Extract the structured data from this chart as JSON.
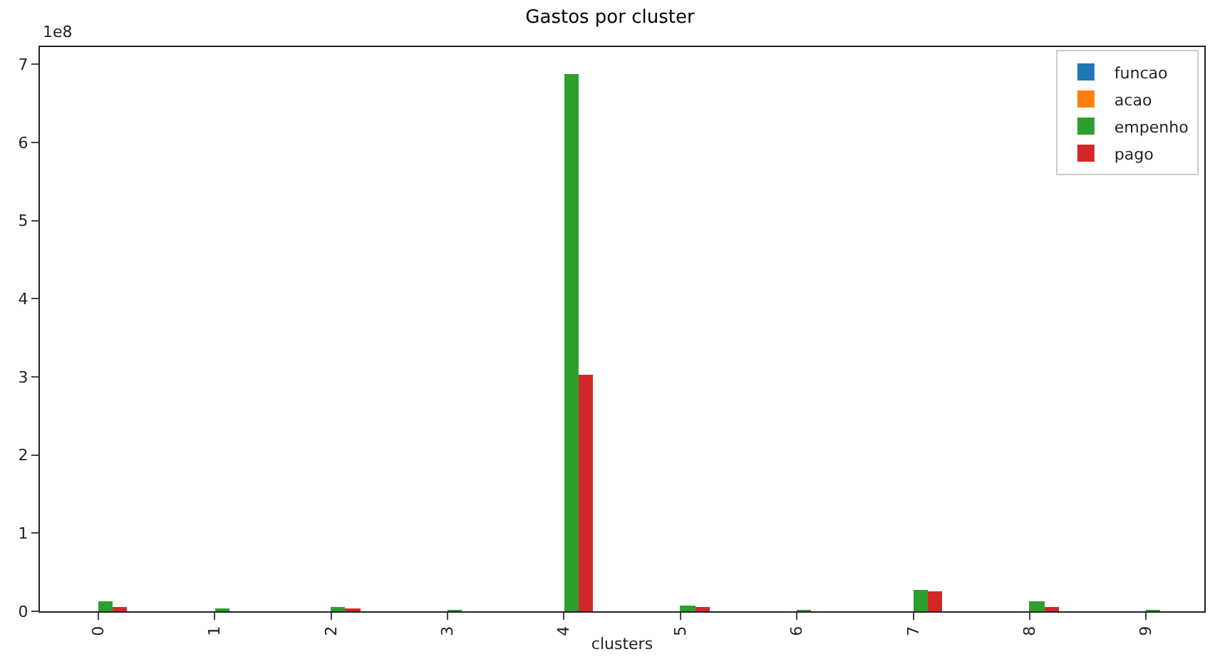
{
  "chart_data": {
    "type": "bar",
    "title": "Gastos por cluster",
    "xlabel": "clusters",
    "annotations": [
      "1e8"
    ],
    "categories": [
      "0",
      "1",
      "2",
      "3",
      "4",
      "5",
      "6",
      "7",
      "8",
      "9"
    ],
    "series": [
      {
        "name": "funcao",
        "color": "#1f77b4",
        "values": [
          0,
          0,
          0,
          0,
          0,
          0,
          0,
          0,
          0,
          0
        ]
      },
      {
        "name": "acao",
        "color": "#ff7f0e",
        "values": [
          0,
          0,
          0,
          0,
          0,
          0,
          0,
          0,
          0,
          0
        ]
      },
      {
        "name": "empenho",
        "color": "#2ca02c",
        "values": [
          0.12,
          0.03,
          0.06,
          0.01,
          6.88,
          0.08,
          0.01,
          0.28,
          0.13,
          0.01
        ]
      },
      {
        "name": "pago",
        "color": "#d62728",
        "values": [
          0.06,
          0,
          0.02,
          0,
          3.03,
          0.05,
          0,
          0.26,
          0.05,
          0
        ]
      }
    ],
    "ylim": [
      0,
      7.22
    ],
    "yticks": [
      0,
      1,
      2,
      3,
      4,
      5,
      6,
      7
    ],
    "legend": "top right"
  }
}
